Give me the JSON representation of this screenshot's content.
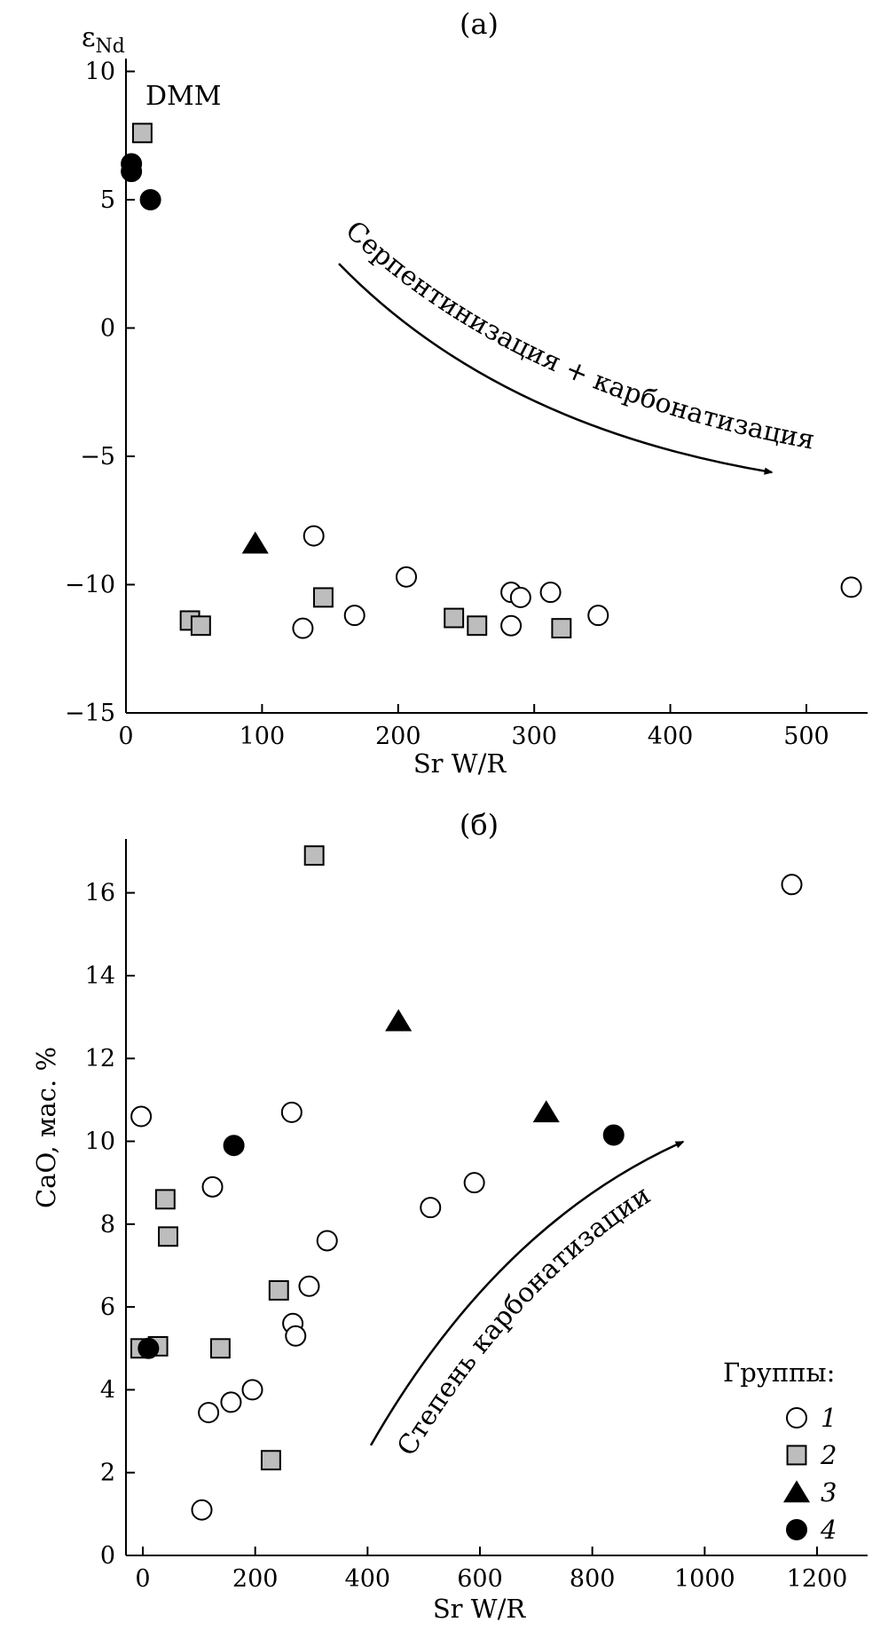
{
  "chart_data": [
    {
      "type": "scatter",
      "title": "(а)",
      "xlabel": "Sr W/R",
      "ylabel_main": "ε",
      "ylabel_sub": "Nd",
      "xlim": [
        0,
        545
      ],
      "ylim": [
        -15,
        10.5
      ],
      "xticks": [
        0,
        100,
        200,
        300,
        400,
        500
      ],
      "xtick_labels": [
        "0",
        "100",
        "200",
        "300",
        "400",
        "500"
      ],
      "yticks": [
        10,
        5,
        0,
        -5,
        -10,
        -15
      ],
      "ytick_labels": [
        "10",
        "5",
        "0",
        "−5",
        "−10",
        "−15"
      ],
      "grid": false,
      "series": [
        {
          "marker": "open-circle",
          "color": "#ffffff",
          "points": [
            [
              138,
              -8.1
            ],
            [
              206,
              -9.7
            ],
            [
              168,
              -11.2
            ],
            [
              130,
              -11.7
            ],
            [
              283,
              -10.3
            ],
            [
              290,
              -10.5
            ],
            [
              312,
              -10.3
            ],
            [
              283,
              -11.6
            ],
            [
              347,
              -11.2
            ],
            [
              533,
              -10.1
            ]
          ]
        },
        {
          "marker": "grey-square",
          "color": "#bdbdbd",
          "points": [
            [
              12,
              7.6
            ],
            [
              47,
              -11.4
            ],
            [
              55,
              -11.6
            ],
            [
              145,
              -10.5
            ],
            [
              241,
              -11.3
            ],
            [
              258,
              -11.6
            ],
            [
              320,
              -11.7
            ]
          ]
        },
        {
          "marker": "filled-triangle",
          "color": "#000000",
          "points": [
            [
              95,
              -8.4
            ]
          ]
        },
        {
          "marker": "filled-circle",
          "color": "#000000",
          "points": [
            [
              4,
              6.4
            ],
            [
              4,
              6.1
            ],
            [
              18,
              5.0
            ]
          ]
        }
      ],
      "annotations": {
        "dmm_label": "DMM",
        "trend_label": "Серпентинизация + карбонатизация"
      }
    },
    {
      "type": "scatter",
      "title": "(б)",
      "xlabel": "Sr W/R",
      "ylabel": "CaO, мас. %",
      "xlim": [
        -30,
        1290
      ],
      "ylim": [
        0,
        17.3
      ],
      "xticks": [
        0,
        200,
        400,
        600,
        800,
        1000,
        1200
      ],
      "xtick_labels": [
        "0",
        "200",
        "400",
        "600",
        "800",
        "1000",
        "1200"
      ],
      "yticks": [
        0,
        2,
        4,
        6,
        8,
        10,
        12,
        14,
        16
      ],
      "ytick_labels": [
        "0",
        "2",
        "4",
        "6",
        "8",
        "10",
        "12",
        "14",
        "16"
      ],
      "grid": false,
      "series": [
        {
          "marker": "open-circle",
          "color": "#ffffff",
          "points": [
            [
              -3,
              10.6
            ],
            [
              124,
              8.9
            ],
            [
              265,
              10.7
            ],
            [
              328,
              7.6
            ],
            [
              296,
              6.5
            ],
            [
              267,
              5.6
            ],
            [
              272,
              5.3
            ],
            [
              117,
              3.45
            ],
            [
              157,
              3.7
            ],
            [
              195,
              4.0
            ],
            [
              105,
              1.1
            ],
            [
              512,
              8.4
            ],
            [
              590,
              9.0
            ],
            [
              1155,
              16.2
            ]
          ]
        },
        {
          "marker": "grey-square",
          "color": "#bdbdbd",
          "points": [
            [
              305,
              16.9
            ],
            [
              40,
              8.6
            ],
            [
              45,
              7.7
            ],
            [
              -4,
              5.0
            ],
            [
              27,
              5.05
            ],
            [
              138,
              5.0
            ],
            [
              242,
              6.4
            ],
            [
              228,
              2.3
            ]
          ]
        },
        {
          "marker": "filled-triangle",
          "color": "#000000",
          "points": [
            [
              455,
              12.9
            ],
            [
              718,
              10.7
            ]
          ]
        },
        {
          "marker": "filled-circle",
          "color": "#000000",
          "points": [
            [
              162,
              9.9
            ],
            [
              838,
              10.15
            ],
            [
              10,
              5.0
            ]
          ]
        }
      ],
      "annotations": {
        "trend_label": "Степень карбонатизации"
      },
      "legend": {
        "title": "Группы:",
        "placement": "bottom-right",
        "entries": [
          "1",
          "2",
          "3",
          "4"
        ]
      }
    }
  ]
}
